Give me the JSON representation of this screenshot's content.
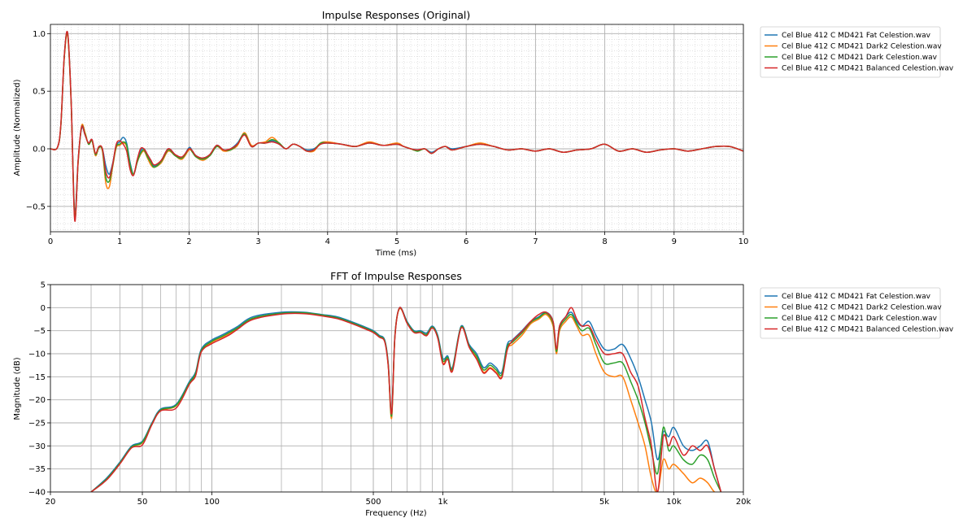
{
  "chart_data": [
    {
      "type": "line",
      "title": "Impulse Responses (Original)",
      "xlabel": "Time (ms)",
      "ylabel": "Amplitude (Normalized)",
      "xlim": [
        0,
        10
      ],
      "ylim": [
        -0.72,
        1.08
      ],
      "x_ticks": [
        "0",
        "1",
        "2",
        "3",
        "4",
        "5",
        "6",
        "7",
        "8",
        "9",
        "10"
      ],
      "y_ticks": [
        "−0.5",
        "0.0",
        "0.5",
        "1.0"
      ],
      "grid": true,
      "legend_position": "outside-right",
      "x": [
        0,
        0.1,
        0.15,
        0.2,
        0.25,
        0.3,
        0.35,
        0.4,
        0.45,
        0.5,
        0.55,
        0.6,
        0.65,
        0.7,
        0.75,
        0.8,
        0.85,
        0.9,
        0.95,
        1.0,
        1.05,
        1.1,
        1.15,
        1.2,
        1.25,
        1.3,
        1.35,
        1.4,
        1.45,
        1.5,
        1.6,
        1.7,
        1.8,
        1.9,
        2.0,
        2.05,
        2.1,
        2.2,
        2.3,
        2.4,
        2.5,
        2.6,
        2.7,
        2.8,
        2.9,
        3.0,
        3.1,
        3.2,
        3.3,
        3.4,
        3.5,
        3.6,
        3.7,
        3.8,
        3.9,
        4.0,
        4.2,
        4.4,
        4.6,
        4.8,
        5.0,
        5.1,
        5.2,
        5.3,
        5.4,
        5.5,
        5.6,
        5.7,
        5.8,
        6.0,
        6.2,
        6.4,
        6.6,
        6.8,
        7.0,
        7.2,
        7.4,
        7.6,
        7.8,
        8.0,
        8.2,
        8.4,
        8.6,
        8.8,
        9.0,
        9.2,
        9.4,
        9.6,
        9.8,
        10.0
      ],
      "series": [
        {
          "name": "Cel Blue 412 C MD421 Fat Celestion.wav",
          "color": "#1f77b4",
          "values": [
            0,
            0.01,
            0.2,
            0.8,
            1.0,
            0.4,
            -0.55,
            -0.1,
            0.18,
            0.12,
            0.05,
            0.08,
            -0.05,
            0.02,
            0.0,
            -0.15,
            -0.22,
            -0.12,
            0.03,
            0.06,
            0.1,
            0.05,
            -0.12,
            -0.22,
            -0.12,
            -0.02,
            0.0,
            -0.05,
            -0.1,
            -0.15,
            -0.1,
            0.0,
            -0.05,
            -0.08,
            0.01,
            -0.02,
            -0.06,
            -0.08,
            -0.05,
            0.03,
            -0.01,
            0.0,
            0.05,
            0.13,
            0.02,
            0.05,
            0.05,
            0.07,
            0.04,
            0.0,
            0.04,
            0.02,
            -0.01,
            0.0,
            0.04,
            0.05,
            0.04,
            0.02,
            0.05,
            0.03,
            0.04,
            0.02,
            0.0,
            -0.01,
            0.0,
            -0.03,
            0.0,
            0.02,
            0.0,
            0.02,
            0.04,
            0.02,
            -0.01,
            0.0,
            -0.02,
            0.0,
            -0.03,
            -0.01,
            0.0,
            0.04,
            -0.02,
            0.0,
            -0.03,
            -0.01,
            0.0,
            -0.02,
            0.0,
            0.02,
            0.02,
            -0.02
          ]
        },
        {
          "name": "Cel Blue 412 C MD421 Dark2 Celestion.wav",
          "color": "#ff7f0e",
          "values": [
            0,
            0.01,
            0.2,
            0.79,
            0.98,
            0.38,
            -0.58,
            -0.12,
            0.2,
            0.14,
            0.04,
            0.07,
            -0.06,
            0.01,
            -0.02,
            -0.3,
            -0.33,
            -0.15,
            0.01,
            0.03,
            0.05,
            0.02,
            -0.15,
            -0.22,
            -0.12,
            -0.05,
            -0.02,
            -0.08,
            -0.14,
            -0.16,
            -0.12,
            -0.02,
            -0.06,
            -0.09,
            -0.01,
            -0.03,
            -0.07,
            -0.1,
            -0.06,
            0.02,
            -0.02,
            -0.01,
            0.03,
            0.14,
            0.03,
            0.05,
            0.06,
            0.1,
            0.05,
            0.0,
            0.04,
            0.02,
            -0.02,
            -0.02,
            0.05,
            0.06,
            0.04,
            0.02,
            0.06,
            0.03,
            0.05,
            0.02,
            0.0,
            -0.02,
            0.0,
            -0.04,
            0.0,
            0.02,
            -0.01,
            0.02,
            0.05,
            0.02,
            -0.01,
            0.0,
            -0.02,
            0.0,
            -0.03,
            -0.01,
            0.0,
            0.04,
            -0.02,
            0.0,
            -0.03,
            -0.01,
            0.0,
            -0.02,
            0.0,
            0.02,
            0.02,
            -0.02
          ]
        },
        {
          "name": "Cel Blue 412 C MD421 Dark Celestion.wav",
          "color": "#2ca02c",
          "values": [
            0,
            0.01,
            0.2,
            0.8,
            0.99,
            0.39,
            -0.6,
            -0.11,
            0.19,
            0.13,
            0.04,
            0.07,
            -0.05,
            0.01,
            -0.01,
            -0.25,
            -0.28,
            -0.14,
            0.02,
            0.04,
            0.06,
            0.03,
            -0.14,
            -0.22,
            -0.12,
            -0.04,
            -0.01,
            -0.07,
            -0.12,
            -0.16,
            -0.11,
            -0.01,
            -0.06,
            -0.08,
            0.0,
            -0.03,
            -0.07,
            -0.09,
            -0.06,
            0.02,
            -0.01,
            -0.01,
            0.04,
            0.13,
            0.02,
            0.05,
            0.05,
            0.08,
            0.05,
            0.0,
            0.04,
            0.02,
            -0.02,
            -0.01,
            0.05,
            0.05,
            0.04,
            0.02,
            0.05,
            0.03,
            0.04,
            0.02,
            0.0,
            -0.02,
            0.0,
            -0.04,
            0.0,
            0.02,
            -0.01,
            0.02,
            0.04,
            0.02,
            -0.01,
            0.0,
            -0.02,
            0.0,
            -0.03,
            -0.01,
            0.0,
            0.04,
            -0.02,
            0.0,
            -0.03,
            -0.01,
            0.0,
            -0.02,
            0.0,
            0.02,
            0.02,
            -0.02
          ]
        },
        {
          "name": "Cel Blue 412 C MD421 Balanced Celestion.wav",
          "color": "#d62728",
          "values": [
            0,
            0.01,
            0.21,
            0.81,
            1.0,
            0.4,
            -0.62,
            -0.1,
            0.19,
            0.12,
            0.05,
            0.08,
            -0.04,
            0.02,
            0.0,
            -0.2,
            -0.25,
            -0.13,
            0.04,
            0.07,
            0.04,
            -0.02,
            -0.18,
            -0.23,
            -0.1,
            0.0,
            0.0,
            -0.05,
            -0.1,
            -0.14,
            -0.1,
            0.0,
            -0.05,
            -0.07,
            0.0,
            -0.02,
            -0.06,
            -0.08,
            -0.05,
            0.03,
            -0.01,
            0.0,
            0.04,
            0.12,
            0.02,
            0.05,
            0.05,
            0.06,
            0.04,
            0.0,
            0.04,
            0.02,
            -0.02,
            -0.01,
            0.04,
            0.05,
            0.04,
            0.02,
            0.05,
            0.03,
            0.04,
            0.02,
            0.0,
            -0.01,
            0.0,
            -0.04,
            0.0,
            0.02,
            -0.01,
            0.02,
            0.04,
            0.02,
            -0.01,
            0.0,
            -0.02,
            0.0,
            -0.03,
            -0.01,
            0.0,
            0.04,
            -0.02,
            0.0,
            -0.03,
            -0.01,
            0.0,
            -0.02,
            0.0,
            0.02,
            0.02,
            -0.02
          ]
        }
      ]
    },
    {
      "type": "line",
      "title": "FFT of Impulse Responses",
      "xlabel": "Frequency (Hz)",
      "ylabel": "Magnitude (dB)",
      "xscale": "log",
      "xlim": [
        20,
        20000
      ],
      "ylim": [
        -40,
        5
      ],
      "x_ticks": [
        {
          "value": 20,
          "label": "20"
        },
        {
          "value": 50,
          "label": "50"
        },
        {
          "value": 100,
          "label": "100"
        },
        {
          "value": 500,
          "label": "500"
        },
        {
          "value": 1000,
          "label": "1k"
        },
        {
          "value": 5000,
          "label": "5k"
        },
        {
          "value": 10000,
          "label": "10k"
        },
        {
          "value": 20000,
          "label": "20k"
        }
      ],
      "y_ticks": [
        "−40",
        "−35",
        "−30",
        "−25",
        "−20",
        "−15",
        "−10",
        "−5",
        "0",
        "5"
      ],
      "grid": true,
      "legend_position": "outside-right",
      "x": [
        30,
        35,
        40,
        45,
        50,
        55,
        60,
        70,
        80,
        85,
        90,
        100,
        110,
        120,
        130,
        150,
        200,
        250,
        300,
        350,
        400,
        450,
        500,
        530,
        560,
        580,
        600,
        620,
        650,
        700,
        750,
        800,
        850,
        900,
        950,
        1000,
        1050,
        1100,
        1200,
        1300,
        1400,
        1500,
        1600,
        1700,
        1800,
        1900,
        2000,
        2200,
        2400,
        2600,
        2800,
        3000,
        3100,
        3200,
        3400,
        3600,
        3800,
        4000,
        4300,
        4600,
        5000,
        5500,
        6000,
        6500,
        7000,
        7500,
        8000,
        8500,
        9000,
        9500,
        10000,
        11000,
        12000,
        13000,
        14000,
        15000,
        16000
      ],
      "series": [
        {
          "name": "Cel Blue 412 C MD421 Fat Celestion.wav",
          "color": "#1f77b4",
          "values": [
            -40,
            -37,
            -33.5,
            -30,
            -29,
            -25,
            -22,
            -21,
            -16,
            -14,
            -9,
            -7,
            -6,
            -5,
            -4,
            -2,
            -1,
            -1,
            -1.5,
            -2,
            -3,
            -4,
            -5,
            -6,
            -7,
            -12,
            -23,
            -6,
            0,
            -3,
            -5,
            -5,
            -5.5,
            -4,
            -6,
            -11,
            -10.5,
            -13,
            -4,
            -8,
            -10,
            -13,
            -12,
            -13,
            -14,
            -8,
            -7,
            -5,
            -3,
            -2,
            -1,
            -3,
            -9,
            -4,
            -2,
            -1,
            -3,
            -4,
            -3,
            -6,
            -9,
            -9,
            -8,
            -11,
            -15,
            -20,
            -25,
            -33,
            -27,
            -28,
            -26,
            -30,
            -31,
            -30,
            -29,
            -35,
            -40
          ]
        },
        {
          "name": "Cel Blue 412 C MD421 Dark2 Celestion.wav",
          "color": "#ff7f0e",
          "values": [
            -40,
            -37.3,
            -33.8,
            -30.3,
            -29.3,
            -25.3,
            -22.3,
            -21.3,
            -16.5,
            -14.5,
            -9.5,
            -7.5,
            -6.5,
            -5.5,
            -4.5,
            -2.5,
            -1.3,
            -1.2,
            -1.7,
            -2.3,
            -3.3,
            -4.3,
            -5.3,
            -6.3,
            -7.3,
            -12.5,
            -24,
            -6.3,
            -0.2,
            -3.3,
            -5.3,
            -5.3,
            -6,
            -4.3,
            -6.5,
            -12,
            -11,
            -13.5,
            -4.3,
            -8.5,
            -11,
            -14,
            -13,
            -14,
            -15,
            -9,
            -8,
            -6,
            -3.5,
            -2.5,
            -1.5,
            -4,
            -10,
            -5,
            -3,
            -2,
            -4,
            -6,
            -6,
            -10,
            -14,
            -15,
            -15,
            -20,
            -25,
            -30,
            -37,
            -40,
            -33,
            -35,
            -34,
            -36,
            -38,
            -37,
            -38,
            -40,
            -40
          ]
        },
        {
          "name": "Cel Blue 412 C MD421 Dark Celestion.wav",
          "color": "#2ca02c",
          "values": [
            -40,
            -37.2,
            -33.7,
            -30.2,
            -29.2,
            -25.2,
            -22.2,
            -21.2,
            -16.3,
            -14.3,
            -9.3,
            -7.3,
            -6.3,
            -5.3,
            -4.3,
            -2.3,
            -1.2,
            -1.1,
            -1.6,
            -2.2,
            -3.2,
            -4.2,
            -5.2,
            -6.2,
            -7.2,
            -12.3,
            -23.5,
            -6.2,
            -0.1,
            -3.2,
            -5.2,
            -5.2,
            -5.8,
            -4.2,
            -6.3,
            -11.5,
            -10.8,
            -13.3,
            -4.2,
            -8.3,
            -10.5,
            -13.5,
            -12.5,
            -13.5,
            -14.5,
            -8.5,
            -7.5,
            -5.5,
            -3.2,
            -2.2,
            -1.2,
            -3.5,
            -9.5,
            -4.5,
            -2.5,
            -1.5,
            -3.5,
            -5,
            -4.5,
            -8,
            -12,
            -12,
            -12,
            -16,
            -20,
            -25,
            -31,
            -36,
            -26,
            -31,
            -30,
            -33,
            -34,
            -32,
            -33,
            -37,
            -40
          ]
        },
        {
          "name": "Cel Blue 412 C MD421 Balanced Celestion.wav",
          "color": "#d62728",
          "values": [
            -40,
            -37.4,
            -33.9,
            -30.4,
            -29.8,
            -25.4,
            -22.4,
            -21.8,
            -16.6,
            -14.8,
            -9.6,
            -7.8,
            -6.8,
            -5.8,
            -4.6,
            -2.6,
            -1.4,
            -1.3,
            -1.8,
            -2.4,
            -3.4,
            -4.4,
            -5.4,
            -6.4,
            -7.4,
            -12.6,
            -23,
            -6.4,
            0,
            -3.4,
            -5.4,
            -5.4,
            -6.1,
            -4.4,
            -6.6,
            -12.2,
            -11.2,
            -13.8,
            -4.4,
            -8.6,
            -11.2,
            -14.2,
            -13.2,
            -14.2,
            -15.2,
            -9.2,
            -7.2,
            -5.2,
            -3,
            -1.5,
            -1,
            -3,
            -9,
            -4,
            -2,
            0,
            -2.5,
            -4,
            -4,
            -7,
            -10,
            -10,
            -10,
            -14,
            -17,
            -24,
            -30,
            -40,
            -28,
            -30,
            -28,
            -32,
            -30,
            -31,
            -30,
            -35,
            -40
          ]
        }
      ]
    }
  ]
}
